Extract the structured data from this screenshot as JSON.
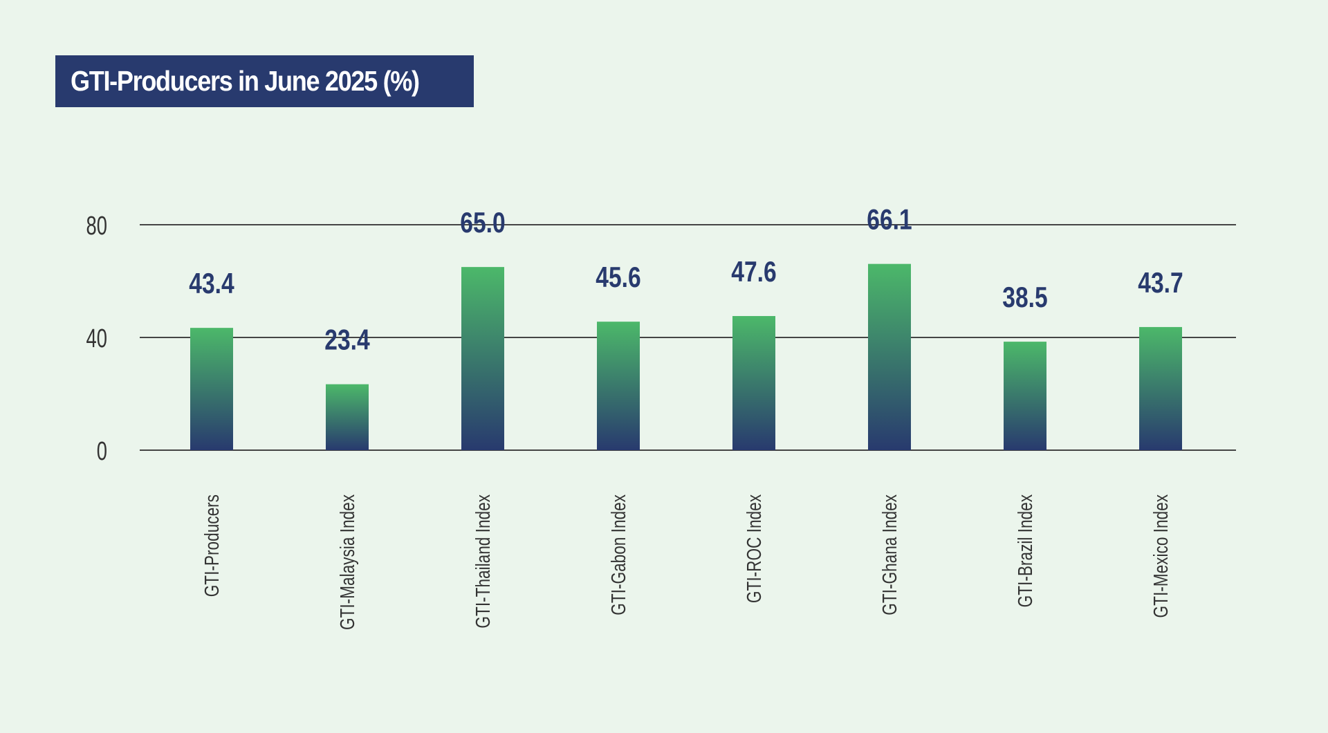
{
  "title": "GTI-Producers in June 2025 (%)",
  "colors": {
    "background": "#ebf5ec",
    "title_bg": "#283a6e",
    "title_text": "#ffffff",
    "bar_top": "#4cb86a",
    "bar_bottom": "#283a6e",
    "value_label": "#283a6e",
    "axis_text": "#333333",
    "gridline": "#444444"
  },
  "chart_data": {
    "type": "bar",
    "categories": [
      "GTI-Producers",
      "GTI-Malaysia Index",
      "GTI-Thailand Index",
      "GTI-Gabon Index",
      "GTI-ROC Index",
      "GTI-Ghana Index",
      "GTI-Brazil Index",
      "GTI-Mexico Index"
    ],
    "values": [
      43.4,
      23.4,
      65.0,
      45.6,
      47.6,
      66.1,
      38.5,
      43.7
    ],
    "value_labels": [
      "43.4",
      "23.4",
      "65.0",
      "45.6",
      "47.6",
      "66.1",
      "38.5",
      "43.7"
    ],
    "title": "GTI-Producers in June 2025 (%)",
    "xlabel": "",
    "ylabel": "",
    "ylim": [
      0,
      80
    ],
    "yticks": [
      0,
      40,
      80
    ],
    "grid": true,
    "legend": "none"
  }
}
